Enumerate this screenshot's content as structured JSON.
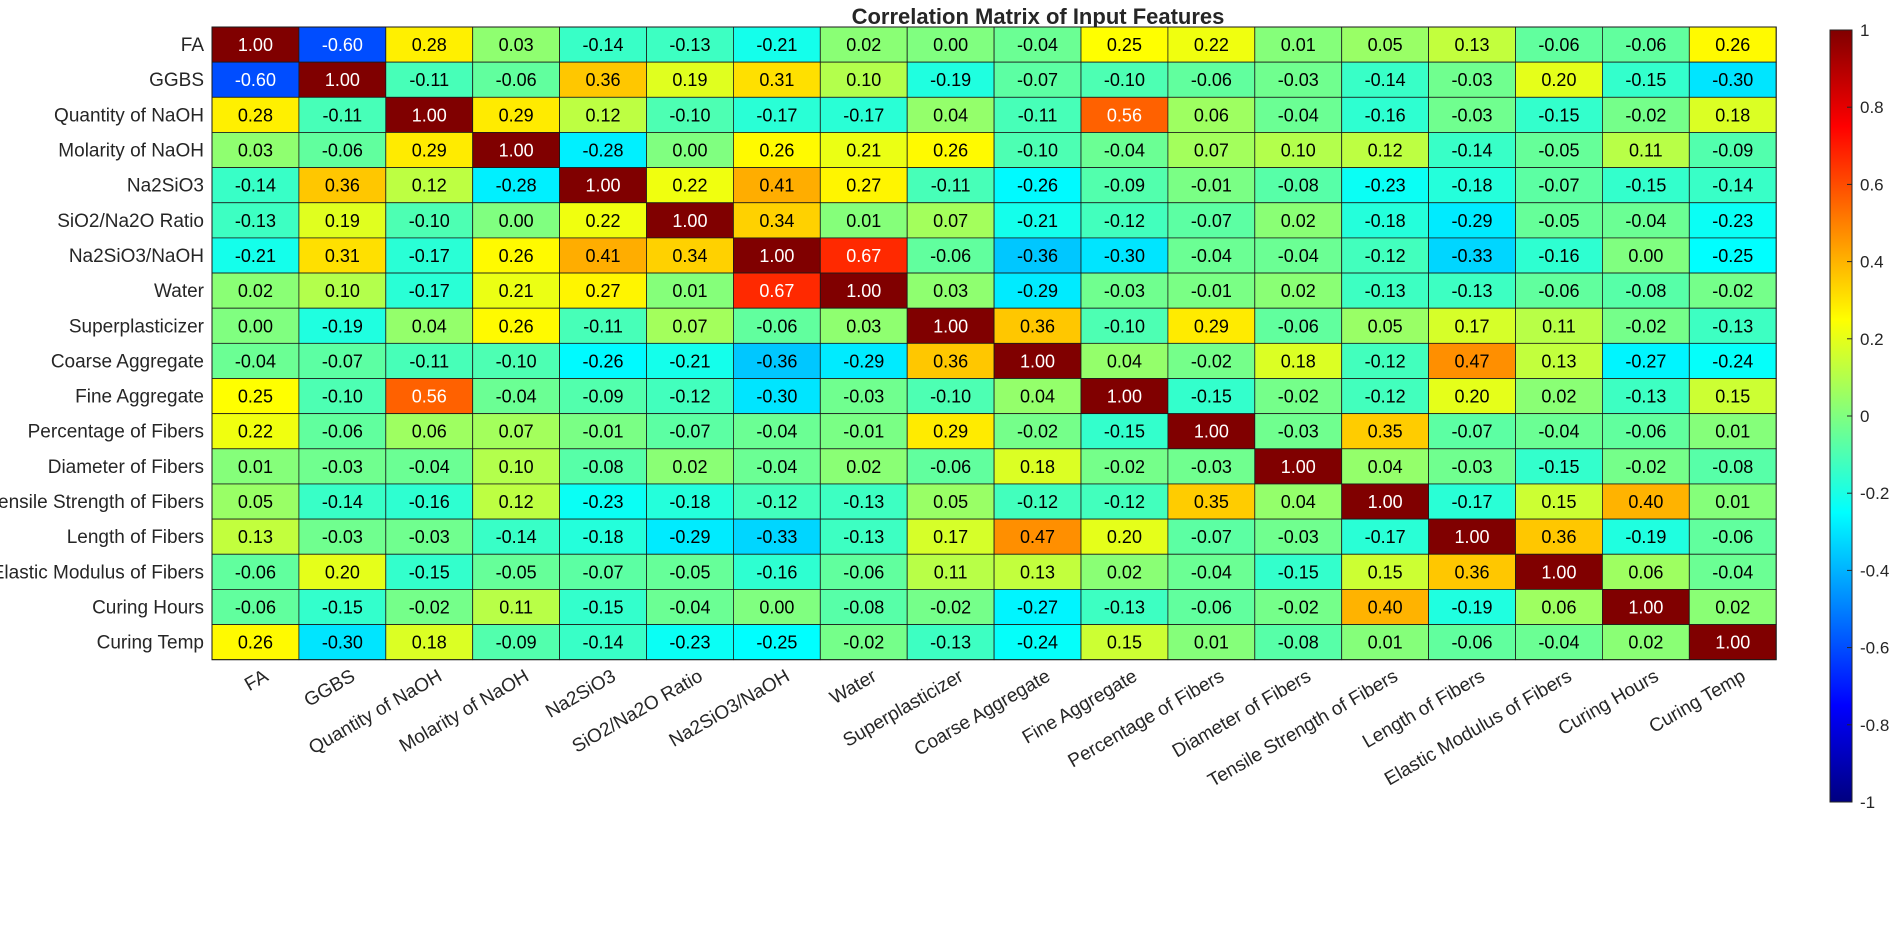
{
  "chart_data": {
    "type": "heatmap",
    "title": "Correlation Matrix of Input Features",
    "labels": [
      "FA",
      "GGBS",
      "Quantity of NaOH",
      "Molarity of NaOH",
      "Na2SiO3",
      "SiO2/Na2O Ratio",
      "Na2SiO3/NaOH",
      "Water",
      "Superplasticizer",
      "Coarse Aggregate",
      "Fine Aggregate",
      "Percentage of Fibers",
      "Diameter of Fibers",
      "Tensile Strength of Fibers",
      "Length of Fibers",
      "Elastic Modulus of Fibers",
      "Curing Hours",
      "Curing Temp"
    ],
    "matrix": [
      [
        1.0,
        -0.6,
        0.28,
        0.03,
        -0.14,
        -0.13,
        -0.21,
        0.02,
        0.0,
        -0.04,
        0.25,
        0.22,
        0.01,
        0.05,
        0.13,
        -0.06,
        -0.06,
        0.26
      ],
      [
        -0.6,
        1.0,
        -0.11,
        -0.06,
        0.36,
        0.19,
        0.31,
        0.1,
        -0.19,
        -0.07,
        -0.1,
        -0.06,
        -0.03,
        -0.14,
        -0.03,
        0.2,
        -0.15,
        -0.3
      ],
      [
        0.28,
        -0.11,
        1.0,
        0.29,
        0.12,
        -0.1,
        -0.17,
        -0.17,
        0.04,
        -0.11,
        0.56,
        0.06,
        -0.04,
        -0.16,
        -0.03,
        -0.15,
        -0.02,
        0.18
      ],
      [
        0.03,
        -0.06,
        0.29,
        1.0,
        -0.28,
        0.0,
        0.26,
        0.21,
        0.26,
        -0.1,
        -0.04,
        0.07,
        0.1,
        0.12,
        -0.14,
        -0.05,
        0.11,
        -0.09
      ],
      [
        -0.14,
        0.36,
        0.12,
        -0.28,
        1.0,
        0.22,
        0.41,
        0.27,
        -0.11,
        -0.26,
        -0.09,
        -0.01,
        -0.08,
        -0.23,
        -0.18,
        -0.07,
        -0.15,
        -0.14
      ],
      [
        -0.13,
        0.19,
        -0.1,
        0.0,
        0.22,
        1.0,
        0.34,
        0.01,
        0.07,
        -0.21,
        -0.12,
        -0.07,
        0.02,
        -0.18,
        -0.29,
        -0.05,
        -0.04,
        -0.23
      ],
      [
        -0.21,
        0.31,
        -0.17,
        0.26,
        0.41,
        0.34,
        1.0,
        0.67,
        -0.06,
        -0.36,
        -0.3,
        -0.04,
        -0.04,
        -0.12,
        -0.33,
        -0.16,
        0.0,
        -0.25
      ],
      [
        0.02,
        0.1,
        -0.17,
        0.21,
        0.27,
        0.01,
        0.67,
        1.0,
        0.03,
        -0.29,
        -0.03,
        -0.01,
        0.02,
        -0.13,
        -0.13,
        -0.06,
        -0.08,
        -0.02
      ],
      [
        0.0,
        -0.19,
        0.04,
        0.26,
        -0.11,
        0.07,
        -0.06,
        0.03,
        1.0,
        0.36,
        -0.1,
        0.29,
        -0.06,
        0.05,
        0.17,
        0.11,
        -0.02,
        -0.13
      ],
      [
        -0.04,
        -0.07,
        -0.11,
        -0.1,
        -0.26,
        -0.21,
        -0.36,
        -0.29,
        0.36,
        1.0,
        0.04,
        -0.02,
        0.18,
        -0.12,
        0.47,
        0.13,
        -0.27,
        -0.24
      ],
      [
        0.25,
        -0.1,
        0.56,
        -0.04,
        -0.09,
        -0.12,
        -0.3,
        -0.03,
        -0.1,
        0.04,
        1.0,
        -0.15,
        -0.02,
        -0.12,
        0.2,
        0.02,
        -0.13,
        0.15
      ],
      [
        0.22,
        -0.06,
        0.06,
        0.07,
        -0.01,
        -0.07,
        -0.04,
        -0.01,
        0.29,
        -0.02,
        -0.15,
        1.0,
        -0.03,
        0.35,
        -0.07,
        -0.04,
        -0.06,
        0.01
      ],
      [
        0.01,
        -0.03,
        -0.04,
        0.1,
        -0.08,
        0.02,
        -0.04,
        0.02,
        -0.06,
        0.18,
        -0.02,
        -0.03,
        1.0,
        0.04,
        -0.03,
        -0.15,
        -0.02,
        -0.08
      ],
      [
        0.05,
        -0.14,
        -0.16,
        0.12,
        -0.23,
        -0.18,
        -0.12,
        -0.13,
        0.05,
        -0.12,
        -0.12,
        0.35,
        0.04,
        1.0,
        -0.17,
        0.15,
        0.4,
        0.01
      ],
      [
        0.13,
        -0.03,
        -0.03,
        -0.14,
        -0.18,
        -0.29,
        -0.33,
        -0.13,
        0.17,
        0.47,
        0.2,
        -0.07,
        -0.03,
        -0.17,
        1.0,
        0.36,
        -0.19,
        -0.06
      ],
      [
        -0.06,
        0.2,
        -0.15,
        -0.05,
        -0.07,
        -0.05,
        -0.16,
        -0.06,
        0.11,
        0.13,
        0.02,
        -0.04,
        -0.15,
        0.15,
        0.36,
        1.0,
        0.06,
        -0.04
      ],
      [
        -0.06,
        -0.15,
        -0.02,
        0.11,
        -0.15,
        -0.04,
        0.0,
        -0.08,
        -0.02,
        -0.27,
        -0.13,
        -0.06,
        -0.02,
        0.4,
        -0.19,
        0.06,
        1.0,
        0.02
      ],
      [
        0.26,
        -0.3,
        0.18,
        -0.09,
        -0.14,
        -0.23,
        -0.25,
        -0.02,
        -0.13,
        -0.24,
        0.15,
        0.01,
        -0.08,
        0.01,
        -0.06,
        -0.04,
        0.02,
        1.0
      ]
    ],
    "colormap": "jet",
    "clim": [
      -1,
      1
    ],
    "colorbar_ticks": [
      "-1",
      "-0.8",
      "-0.6",
      "-0.4",
      "-0.2",
      "0",
      "0.2",
      "0.4",
      "0.6",
      "0.8",
      "1"
    ],
    "colorbar_position": "right",
    "value_format": "2 decimals",
    "xtick_rotation_deg": 30
  }
}
